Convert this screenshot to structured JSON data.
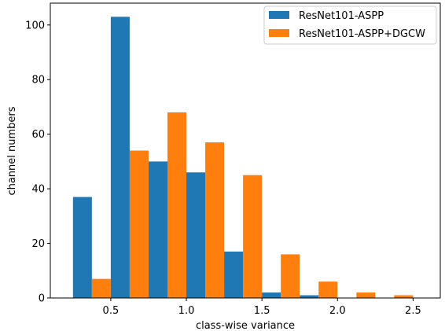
{
  "chart_data": {
    "type": "bar",
    "title": "",
    "xlabel": "class-wise variance",
    "ylabel": "channel numbers",
    "bin_edges": [
      0.25,
      0.5,
      0.75,
      1.0,
      1.25,
      1.5,
      1.75,
      2.0,
      2.25,
      2.5
    ],
    "x_ticks": [
      "0.5",
      "1.0",
      "1.5",
      "2.0",
      "2.5"
    ],
    "x_tick_values": [
      0.5,
      1.0,
      1.5,
      2.0,
      2.5
    ],
    "y_ticks": [
      "0",
      "20",
      "40",
      "60",
      "80",
      "100"
    ],
    "y_tick_values": [
      0,
      20,
      40,
      60,
      80,
      100
    ],
    "xlim": [
      0.1,
      2.68
    ],
    "ylim": [
      0,
      108
    ],
    "grid": false,
    "legend_position": "top-right",
    "series": [
      {
        "name": "ResNet101-ASPP",
        "color": "#1f77b4",
        "values": [
          37,
          103,
          50,
          46,
          17,
          2,
          1,
          0,
          0
        ]
      },
      {
        "name": "ResNet101-ASPP+DGCW",
        "color": "#ff7f0e",
        "values": [
          7,
          54,
          68,
          57,
          45,
          16,
          6,
          2,
          1
        ]
      }
    ]
  }
}
